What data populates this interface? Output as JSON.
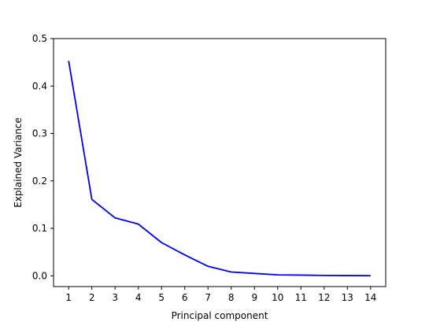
{
  "chart_data": {
    "type": "line",
    "title": "",
    "xlabel": "Principal component",
    "ylabel": "Explained Variance",
    "x": [
      1,
      2,
      3,
      4,
      5,
      6,
      7,
      8,
      9,
      10,
      11,
      12,
      13,
      14
    ],
    "series": [
      {
        "values": [
          0.453,
          0.161,
          0.122,
          0.109,
          0.07,
          0.044,
          0.02,
          0.008,
          0.005,
          0.002,
          0.0015,
          0.0007,
          0.0004,
          0.0002
        ],
        "color": "#0000ee"
      }
    ],
    "xticks": [
      "1",
      "2",
      "3",
      "4",
      "5",
      "6",
      "7",
      "8",
      "9",
      "10",
      "11",
      "12",
      "13",
      "14"
    ],
    "yticks": [
      "0.0",
      "0.1",
      "0.2",
      "0.3",
      "0.4",
      "0.5"
    ],
    "ytick_values": [
      0.0,
      0.1,
      0.2,
      0.3,
      0.4,
      0.5
    ],
    "xlim": [
      0.35,
      14.65
    ],
    "ylim": [
      -0.0227,
      0.5
    ],
    "grid": false,
    "legend": "none"
  }
}
